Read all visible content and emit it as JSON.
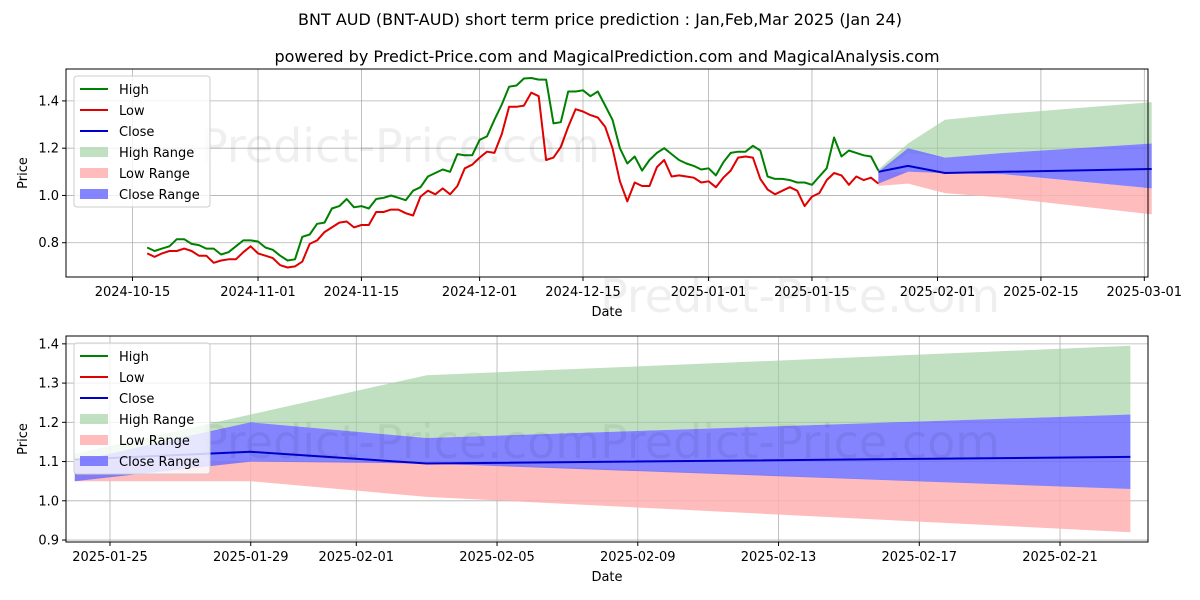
{
  "title": "BNT AUD (BNT-AUD) short term price prediction : Jan,Feb,Mar 2025 (Jan 24)",
  "subtitle": "powered by Predict-Price.com and MagicalPrediction.com and MagicalAnalysis.com",
  "watermark": "Predict-Price.com",
  "colors": {
    "high": "#008000",
    "low": "#e00000",
    "close": "#0000cc",
    "high_range": "#9fd09f",
    "low_range": "#ffb0b0",
    "close_range": "#6f6fff"
  },
  "chart_data": [
    {
      "type": "line",
      "panel": "top",
      "xlabel": "Date",
      "ylabel": "Price",
      "grid": true,
      "legend_position": "top-left",
      "legend": [
        "High",
        "Low",
        "Close",
        "High Range",
        "Low Range",
        "Close Range"
      ],
      "xticks": [
        {
          "day": 15,
          "label": "2024-10-15"
        },
        {
          "day": 32,
          "label": "2024-11-01"
        },
        {
          "day": 46,
          "label": "2024-11-15"
        },
        {
          "day": 62,
          "label": "2024-12-01"
        },
        {
          "day": 76,
          "label": "2024-12-15"
        },
        {
          "day": 93,
          "label": "2025-01-01"
        },
        {
          "day": 107,
          "label": "2025-01-15"
        },
        {
          "day": 124,
          "label": "2025-02-01"
        },
        {
          "day": 138,
          "label": "2025-02-15"
        },
        {
          "day": 152,
          "label": "2025-03-01"
        }
      ],
      "yticks": [
        0.8,
        1.0,
        1.2,
        1.4
      ],
      "xlim": [
        6,
        152.5
      ],
      "ylim": [
        0.655,
        1.535
      ],
      "x_note": "day index: 1 = 2024-10-01",
      "high": {
        "x": [
          17,
          18,
          19,
          20,
          21,
          22,
          23,
          24,
          25,
          26,
          27,
          28,
          29,
          30,
          31,
          32,
          33,
          34,
          35,
          36,
          37,
          38,
          39,
          40,
          41,
          42,
          43,
          44,
          45,
          46,
          47,
          48,
          49,
          50,
          51,
          52,
          53,
          54,
          55,
          56,
          57,
          58,
          59,
          60,
          61,
          62,
          63,
          64,
          65,
          66,
          67,
          68,
          69,
          70,
          71,
          72,
          73,
          74,
          75,
          76,
          77,
          78,
          79,
          80,
          81,
          82,
          83,
          84,
          85,
          86,
          87,
          88,
          89,
          90,
          91,
          92,
          93,
          94,
          95,
          96,
          97,
          98,
          99,
          100,
          101,
          102,
          103,
          104,
          105,
          106,
          107,
          108,
          109,
          110,
          111,
          112,
          113,
          114,
          115,
          116
        ],
        "values": [
          0.78,
          0.765,
          0.775,
          0.785,
          0.815,
          0.815,
          0.795,
          0.79,
          0.775,
          0.775,
          0.75,
          0.76,
          0.785,
          0.81,
          0.81,
          0.805,
          0.78,
          0.77,
          0.745,
          0.725,
          0.73,
          0.825,
          0.835,
          0.88,
          0.885,
          0.945,
          0.955,
          0.985,
          0.95,
          0.955,
          0.945,
          0.985,
          0.99,
          1.0,
          0.99,
          0.98,
          1.02,
          1.035,
          1.08,
          1.095,
          1.11,
          1.1,
          1.175,
          1.17,
          1.17,
          1.235,
          1.25,
          1.32,
          1.385,
          1.46,
          1.465,
          1.495,
          1.497,
          1.49,
          1.49,
          1.305,
          1.31,
          1.44,
          1.44,
          1.445,
          1.42,
          1.44,
          1.38,
          1.32,
          1.2,
          1.135,
          1.165,
          1.105,
          1.15,
          1.18,
          1.2,
          1.175,
          1.15,
          1.135,
          1.125,
          1.11,
          1.115,
          1.085,
          1.14,
          1.18,
          1.185,
          1.185,
          1.21,
          1.19,
          1.08,
          1.07,
          1.07,
          1.065,
          1.055,
          1.055,
          1.045,
          1.08,
          1.115,
          1.245,
          1.165,
          1.19,
          1.18,
          1.17,
          1.165,
          1.105
        ]
      },
      "low": {
        "x": [
          17,
          18,
          19,
          20,
          21,
          22,
          23,
          24,
          25,
          26,
          27,
          28,
          29,
          30,
          31,
          32,
          33,
          34,
          35,
          36,
          37,
          38,
          39,
          40,
          41,
          42,
          43,
          44,
          45,
          46,
          47,
          48,
          49,
          50,
          51,
          52,
          53,
          54,
          55,
          56,
          57,
          58,
          59,
          60,
          61,
          62,
          63,
          64,
          65,
          66,
          67,
          68,
          69,
          70,
          71,
          72,
          73,
          74,
          75,
          76,
          77,
          78,
          79,
          80,
          81,
          82,
          83,
          84,
          85,
          86,
          87,
          88,
          89,
          90,
          91,
          92,
          93,
          94,
          95,
          96,
          97,
          98,
          99,
          100,
          101,
          102,
          103,
          104,
          105,
          106,
          107,
          108,
          109,
          110,
          111,
          112,
          113,
          114,
          115,
          116
        ],
        "values": [
          0.755,
          0.74,
          0.755,
          0.765,
          0.765,
          0.775,
          0.765,
          0.745,
          0.745,
          0.715,
          0.725,
          0.73,
          0.73,
          0.76,
          0.785,
          0.755,
          0.745,
          0.735,
          0.705,
          0.695,
          0.7,
          0.72,
          0.795,
          0.81,
          0.845,
          0.865,
          0.885,
          0.89,
          0.865,
          0.875,
          0.875,
          0.93,
          0.93,
          0.94,
          0.94,
          0.925,
          0.915,
          0.995,
          1.02,
          1.005,
          1.03,
          1.005,
          1.04,
          1.115,
          1.13,
          1.16,
          1.185,
          1.18,
          1.26,
          1.375,
          1.375,
          1.38,
          1.435,
          1.42,
          1.15,
          1.16,
          1.205,
          1.29,
          1.365,
          1.355,
          1.34,
          1.33,
          1.29,
          1.2,
          1.06,
          0.975,
          1.055,
          1.04,
          1.04,
          1.12,
          1.15,
          1.08,
          1.085,
          1.08,
          1.075,
          1.055,
          1.06,
          1.035,
          1.075,
          1.105,
          1.16,
          1.165,
          1.16,
          1.07,
          1.025,
          1.005,
          1.02,
          1.035,
          1.02,
          0.955,
          0.995,
          1.01,
          1.065,
          1.095,
          1.085,
          1.045,
          1.08,
          1.065,
          1.075,
          1.05
        ]
      },
      "forecast_x": [
        116,
        120,
        125,
        133,
        153
      ],
      "close": [
        1.1,
        1.125,
        1.095,
        1.1,
        1.112
      ],
      "high_range_upper": [
        1.11,
        1.22,
        1.32,
        1.345,
        1.395
      ],
      "high_range_lower": [
        1.09,
        1.18,
        1.16,
        1.18,
        1.22
      ],
      "low_range_upper": [
        1.1,
        1.1,
        1.1,
        1.09,
        1.03
      ],
      "low_range_lower": [
        1.04,
        1.05,
        1.01,
        0.99,
        0.92
      ],
      "close_range_upper": [
        1.1,
        1.2,
        1.16,
        1.18,
        1.22
      ],
      "close_range_lower": [
        1.05,
        1.1,
        1.095,
        1.09,
        1.03
      ]
    },
    {
      "type": "area",
      "panel": "bottom",
      "xlabel": "Date",
      "ylabel": "Price",
      "grid": true,
      "legend_position": "top-left",
      "legend": [
        "High",
        "Low",
        "Close",
        "High Range",
        "Low Range",
        "Close Range"
      ],
      "x_note": "day index: 0 = 2025-01-24",
      "xticks": [
        {
          "day": 1,
          "label": "2025-01-25"
        },
        {
          "day": 5,
          "label": "2025-01-29"
        },
        {
          "day": 8,
          "label": "2025-02-01"
        },
        {
          "day": 12,
          "label": "2025-02-05"
        },
        {
          "day": 16,
          "label": "2025-02-09"
        },
        {
          "day": 20,
          "label": "2025-02-13"
        },
        {
          "day": 24,
          "label": "2025-02-17"
        },
        {
          "day": 28,
          "label": "2025-02-21"
        }
      ],
      "yticks": [
        0.9,
        1.0,
        1.1,
        1.2,
        1.3,
        1.4
      ],
      "xlim": [
        -0.25,
        30.5
      ],
      "ylim": [
        0.895,
        1.42
      ],
      "x": [
        0,
        5,
        10,
        30
      ],
      "close": [
        1.105,
        1.125,
        1.095,
        1.112
      ],
      "high_range_upper": [
        1.12,
        1.22,
        1.32,
        1.395
      ],
      "high_range_lower": [
        1.09,
        1.2,
        1.16,
        1.22
      ],
      "low_range_upper": [
        1.1,
        1.1,
        1.1,
        1.03
      ],
      "low_range_lower": [
        1.05,
        1.05,
        1.01,
        0.92
      ],
      "close_range_upper": [
        1.1,
        1.2,
        1.16,
        1.22
      ],
      "close_range_lower": [
        1.05,
        1.1,
        1.095,
        1.03
      ]
    }
  ]
}
